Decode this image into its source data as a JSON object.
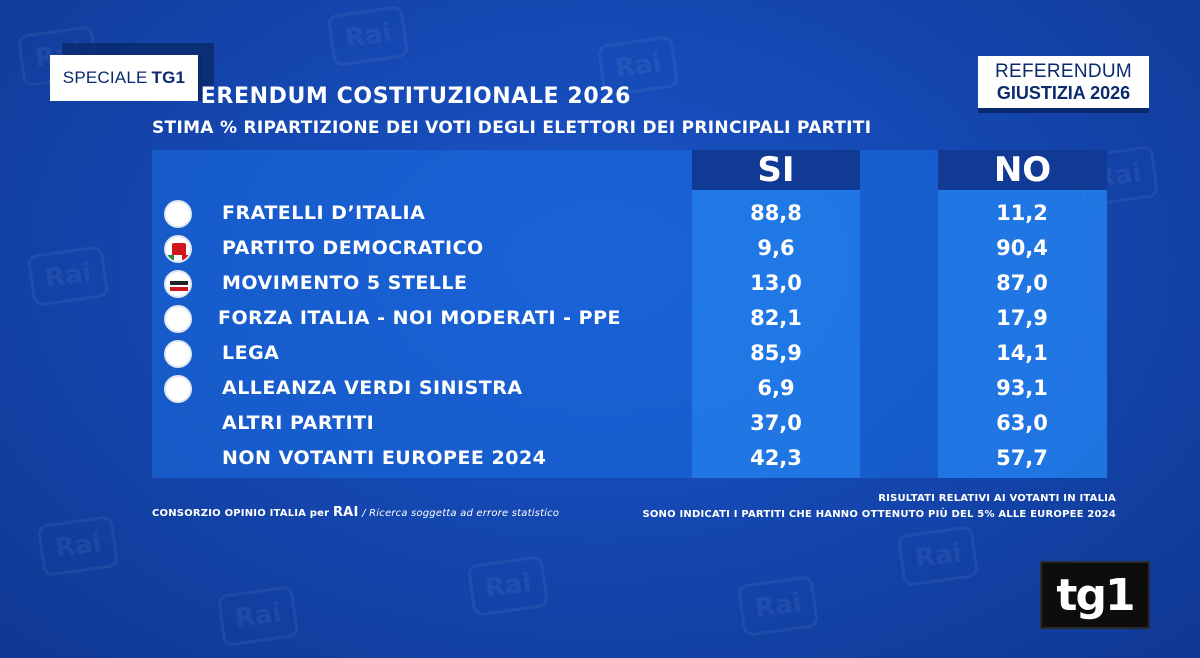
{
  "badges": {
    "speciale_prefix": "SPECIALE",
    "speciale_strong": "TG1",
    "referendum_line1": "REFERENDUM",
    "referendum_line2": "GIUSTIZIA 2026"
  },
  "header": {
    "title": "REFERENDUM COSTITUZIONALE 2026",
    "subtitle": "STIMA % RIPARTIZIONE DEI VOTI DEGLI ELETTORI DEI PRINCIPALI PARTITI"
  },
  "table": {
    "col_si": "SI",
    "col_no": "NO",
    "rows": [
      {
        "party": "FRATELLI D’ITALIA",
        "si": "88,8",
        "no": "11,2",
        "icon": "fratelli-italia-logo"
      },
      {
        "party": "PARTITO DEMOCRATICO",
        "si": "9,6",
        "no": "90,4",
        "icon": "pd-logo"
      },
      {
        "party": "MOVIMENTO 5 STELLE",
        "si": "13,0",
        "no": "87,0",
        "icon": "m5s-logo"
      },
      {
        "party": "FORZA ITALIA - NOI MODERATI - PPE",
        "si": "82,1",
        "no": "17,9",
        "icon": "forza-italia-logo"
      },
      {
        "party": "LEGA",
        "si": "85,9",
        "no": "14,1",
        "icon": "lega-logo"
      },
      {
        "party": "ALLEANZA VERDI SINISTRA",
        "si": "6,9",
        "no": "93,1",
        "icon": "avs-logo"
      },
      {
        "party": "ALTRI PARTITI",
        "si": "37,0",
        "no": "63,0",
        "icon": ""
      },
      {
        "party": "NON VOTANTI EUROPEE 2024",
        "si": "42,3",
        "no": "57,7",
        "icon": ""
      }
    ]
  },
  "footer": {
    "left_source": "CONSORZIO OPINIO ITALIA per",
    "left_brand": "RAI",
    "left_note": "/ Ricerca soggetta ad errore statistico",
    "right_line1": "RISULTATI RELATIVI AI VOTANTI IN ITALIA",
    "right_line2": "SONO INDICATI I PARTITI CHE HANNO OTTENUTO PIÙ DEL 5% ALLE EUROPEE 2024"
  },
  "logo": {
    "channel": "tg1"
  },
  "watermark": {
    "text": "Rai"
  },
  "colors": {
    "background": "#1548b2",
    "header_cell": "#113a94",
    "badge_text": "#0a2a6e"
  }
}
